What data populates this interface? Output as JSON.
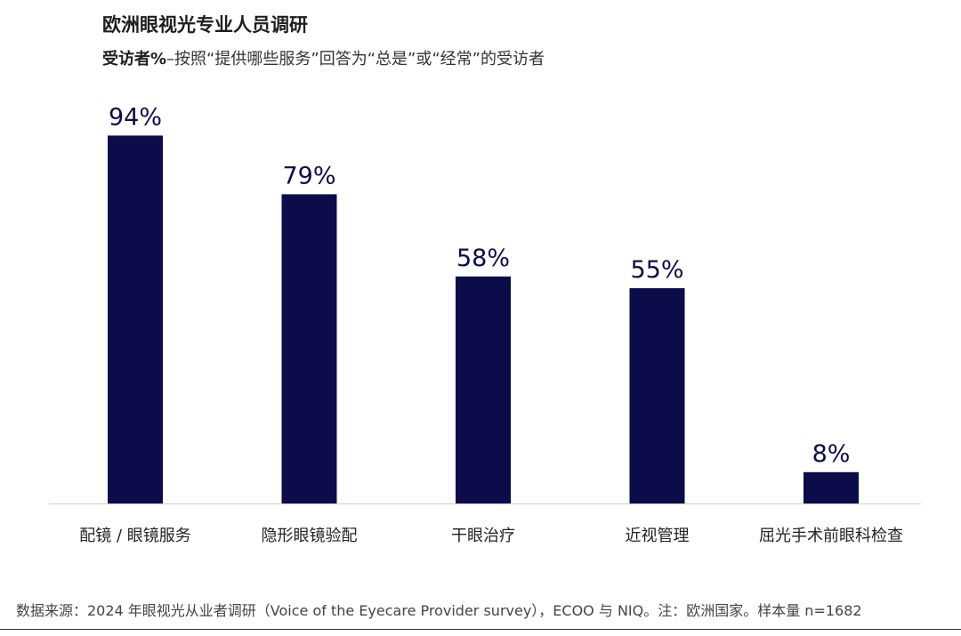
{
  "header": {
    "title": "欧洲眼视光专业人员调研",
    "subtitle_bold": "受访者%",
    "subtitle_rest": "–按照“提供哪些服务”回答为“总是”或“经常”的受访者"
  },
  "footer": {
    "source": "数据来源：2024 年眼视光从业者调研（Voice of the Eyecare Provider survey），ECOO 与 NIQ。注：欧洲国家。样本量 n=1682"
  },
  "colors": {
    "bar": "#0c0c4a",
    "label": "#0c0c4a",
    "axis": "#cfcfcf"
  },
  "chart_data": {
    "type": "bar",
    "categories": [
      "配镜 / 眼镜服务",
      "隐形眼镜验配",
      "干眼治疗",
      "近视管理",
      "屈光手术前眼科检查"
    ],
    "values": [
      94,
      79,
      58,
      55,
      8
    ],
    "value_labels": [
      "94%",
      "79%",
      "58%",
      "55%",
      "8%"
    ],
    "title": "",
    "xlabel": "",
    "ylabel": "",
    "ylim": [
      0,
      100
    ],
    "grid": false,
    "legend": "none"
  }
}
